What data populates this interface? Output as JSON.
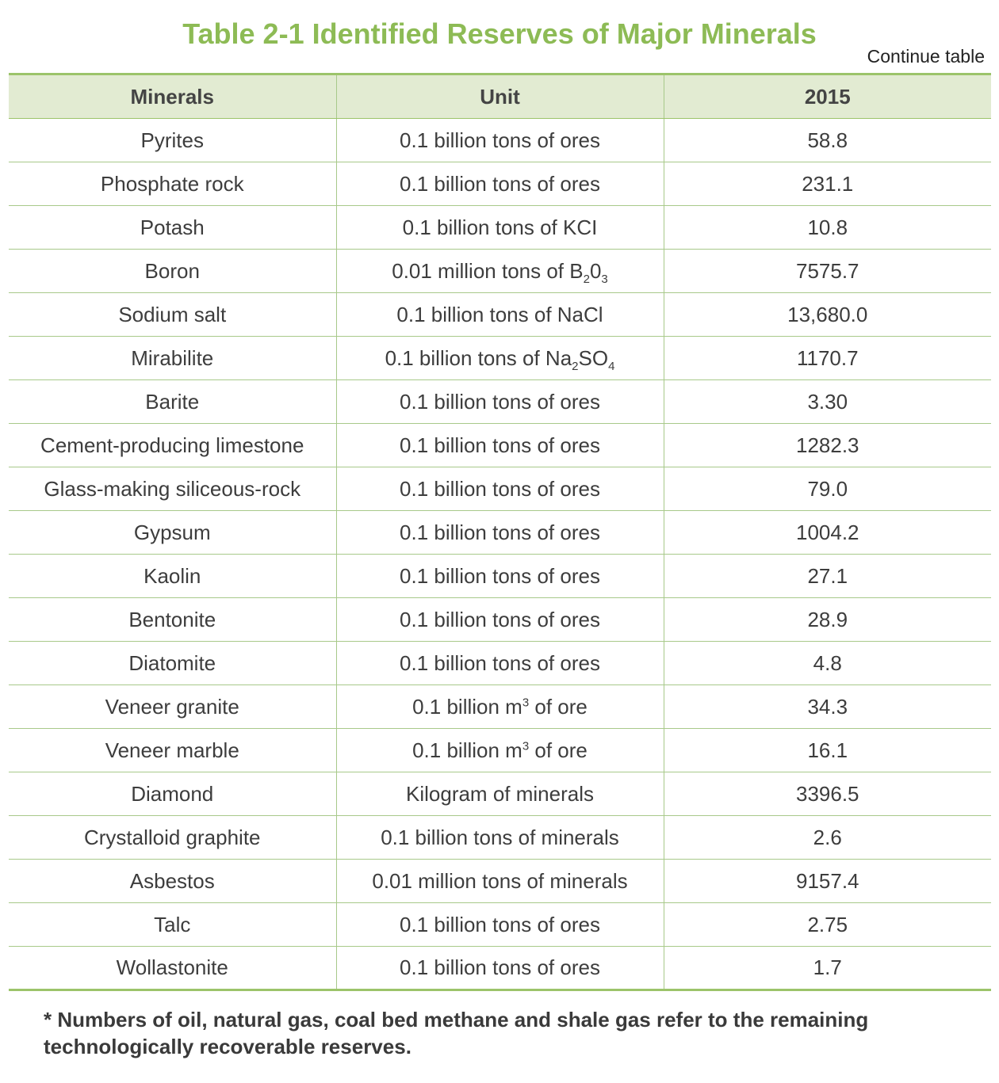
{
  "title": "Table 2-1 Identified Reserves of Major Minerals",
  "continue_label": "Continue table",
  "headers": [
    "Minerals",
    "Unit",
    "2015"
  ],
  "rows": [
    {
      "mineral": "Pyrites",
      "unit": "0.1 billion tons of ores",
      "value": "58.8"
    },
    {
      "mineral": "Phosphate rock",
      "unit": "0.1 billion tons of ores",
      "value": "231.1"
    },
    {
      "mineral": "Potash",
      "unit": "0.1 billion tons of KCI",
      "value": "10.8"
    },
    {
      "mineral": "Boron",
      "unit": "0.01 million tons of B<sub>2</sub>0<sub>3</sub>",
      "value": "7575.7"
    },
    {
      "mineral": "Sodium salt",
      "unit": "0.1 billion tons of NaCl",
      "value": "13,680.0"
    },
    {
      "mineral": "Mirabilite",
      "unit": "0.1 billion tons of Na<sub>2</sub>SO<sub>4</sub>",
      "value": "1170.7"
    },
    {
      "mineral": "Barite",
      "unit": "0.1 billion tons of ores",
      "value": "3.30"
    },
    {
      "mineral": "Cement-producing limestone",
      "unit": "0.1 billion tons of ores",
      "value": "1282.3"
    },
    {
      "mineral": "Glass-making siliceous-rock",
      "unit": "0.1 billion tons of ores",
      "value": "79.0"
    },
    {
      "mineral": "Gypsum",
      "unit": "0.1 billion tons of ores",
      "value": "1004.2"
    },
    {
      "mineral": "Kaolin",
      "unit": "0.1 billion tons of ores",
      "value": "27.1"
    },
    {
      "mineral": "Bentonite",
      "unit": "0.1 billion tons of ores",
      "value": "28.9"
    },
    {
      "mineral": "Diatomite",
      "unit": "0.1 billion tons of ores",
      "value": "4.8"
    },
    {
      "mineral": "Veneer granite",
      "unit": "0.1 billion m<sup>3</sup> of ore",
      "value": "34.3"
    },
    {
      "mineral": "Veneer marble",
      "unit": "0.1 billion m<sup>3</sup> of ore",
      "value": "16.1"
    },
    {
      "mineral": "Diamond",
      "unit": "Kilogram of minerals",
      "value": "3396.5"
    },
    {
      "mineral": "Crystalloid graphite",
      "unit": "0.1 billion tons of minerals",
      "value": "2.6"
    },
    {
      "mineral": "Asbestos",
      "unit": "0.01 million tons of minerals",
      "value": "9157.4"
    },
    {
      "mineral": "Talc",
      "unit": "0.1 billion tons of ores",
      "value": "2.75"
    },
    {
      "mineral": "Wollastonite",
      "unit": "0.1 billion tons of ores",
      "value": "1.7"
    }
  ],
  "footnote": "* Numbers of oil, natural gas, coal bed methane and shale gas refer to the remaining technologically recoverable reserves.",
  "colors": {
    "accent": "#8dbb55",
    "header_bg": "#e2ebd2",
    "rule": "#9cc46a"
  }
}
